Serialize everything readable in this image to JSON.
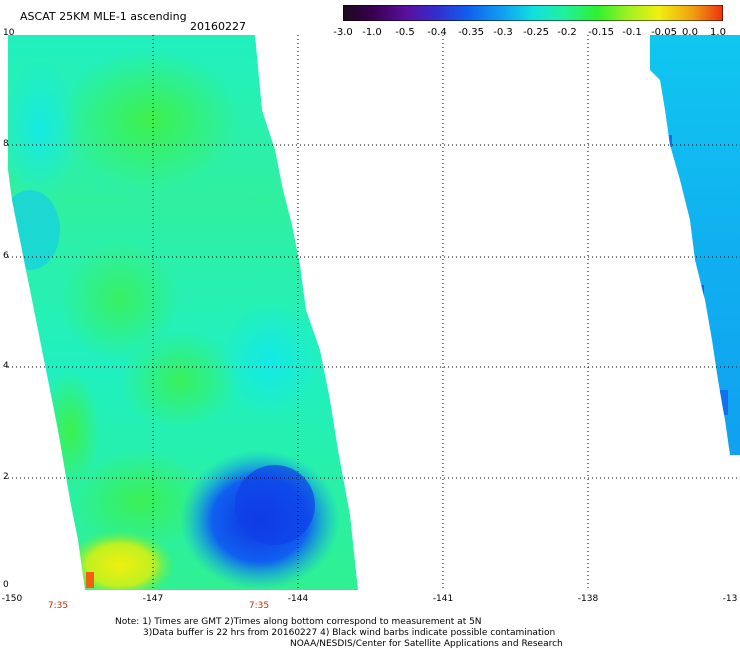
{
  "header": {
    "title": "ASCAT 25KM MLE-1 ascending",
    "date": "20160227"
  },
  "colorbar": {
    "labels": [
      "-3.0",
      "-1.0",
      "-0.5",
      "-0.4",
      "-0.35",
      "-0.3",
      "-0.25",
      "-0.2",
      "-0.15",
      "-0.1",
      "-0.05",
      "0.0",
      "1.0"
    ],
    "colors": [
      "#1a0a1a",
      "#3a0050",
      "#5a10a0",
      "#3030d0",
      "#1060f0",
      "#10a0f0",
      "#10e0e0",
      "#20f0a0",
      "#30f030",
      "#a0f020",
      "#f0f010",
      "#f0a010",
      "#f03010"
    ]
  },
  "map": {
    "y_tick_labels": [
      "10",
      "8",
      "6",
      "4",
      "2",
      "0"
    ],
    "x_tick_labels": [
      "-150",
      "-147",
      "-144",
      "-141",
      "-138",
      "-13"
    ],
    "time_labels": [
      "7:35",
      "7:35"
    ]
  },
  "notes": {
    "line1": "Note: 1) Times are GMT 2)Times along bottom correspond to measurement at 5N",
    "line2": "3)Data buffer is 22 hrs from 20160227 4) Black wind barbs indicate possible contamination",
    "line3": "NOAA/NESDIS/Center for Satellite Applications and Research"
  }
}
